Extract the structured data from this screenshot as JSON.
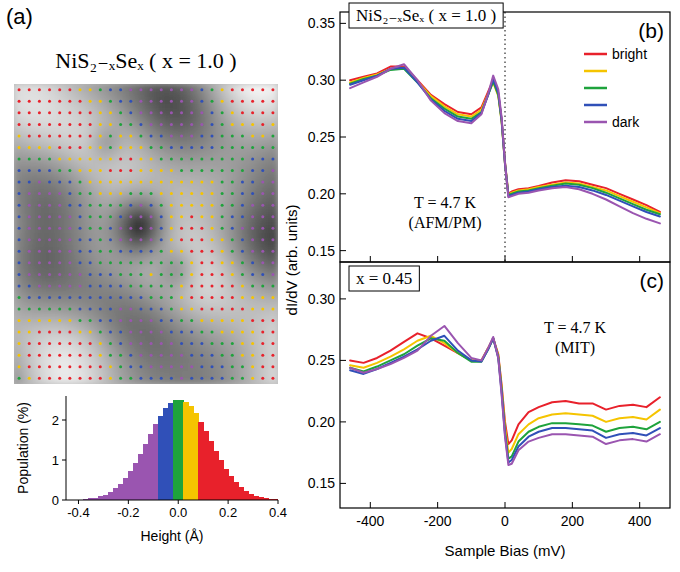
{
  "chart_data": [
    {
      "type": "image",
      "label": "(a)",
      "title": "NiS₂₋ₓSeₓ ( x = 1.0 )"
    },
    {
      "type": "histogram",
      "xlabel": "Height (Å)",
      "ylabel": "Population (%)",
      "bins": [
        -0.44,
        -0.42,
        -0.4,
        -0.38,
        -0.36,
        -0.34,
        -0.32,
        -0.3,
        -0.28,
        -0.26,
        -0.24,
        -0.22,
        -0.2,
        -0.18,
        -0.16,
        -0.14,
        -0.12,
        -0.1,
        -0.08,
        -0.06,
        -0.04,
        -0.02,
        0,
        0.02,
        0.04,
        0.06,
        0.08,
        0.1,
        0.12,
        0.14,
        0.16,
        0.18,
        0.2,
        0.22,
        0.24,
        0.26,
        0.28,
        0.3,
        0.32,
        0.34,
        0.36,
        0.38,
        0.4
      ],
      "values": [
        0.01,
        0.01,
        0.01,
        0.02,
        0.04,
        0.06,
        0.09,
        0.13,
        0.2,
        0.29,
        0.4,
        0.54,
        0.72,
        0.92,
        1.15,
        1.39,
        1.64,
        1.89,
        2.11,
        2.29,
        2.42,
        2.49,
        2.5,
        2.45,
        2.34,
        2.17,
        1.95,
        1.72,
        1.47,
        1.22,
        0.99,
        0.78,
        0.6,
        0.45,
        0.33,
        0.23,
        0.16,
        0.11,
        0.07,
        0.05,
        0.03,
        0.02
      ],
      "colors": [
        "#9a55b0",
        "#9a55b0",
        "#9a55b0",
        "#9a55b0",
        "#9a55b0",
        "#9a55b0",
        "#9a55b0",
        "#9a55b0",
        "#9a55b0",
        "#9a55b0",
        "#9a55b0",
        "#9a55b0",
        "#9a55b0",
        "#9a55b0",
        "#9a55b0",
        "#9a55b0",
        "#9a55b0",
        "#9a55b0",
        "#3050b8",
        "#3050b8",
        "#3050b8",
        "#1ea33c",
        "#1ea33c",
        "#f5c400",
        "#f5c400",
        "#f5c400",
        "#e8212b",
        "#e8212b",
        "#e8212b",
        "#e8212b",
        "#e8212b",
        "#e8212b",
        "#e8212b",
        "#e8212b",
        "#e8212b",
        "#e8212b",
        "#e8212b",
        "#e8212b",
        "#e8212b",
        "#e8212b",
        "#e8212b",
        "#e8212b"
      ],
      "xlim": [
        -0.45,
        0.4
      ],
      "ylim": [
        0,
        2.6
      ],
      "xticks": [
        -0.4,
        -0.2,
        {
          "value": 0,
          "label": "0.0"
        },
        0.2,
        0.4
      ],
      "yticks": [
        0,
        1,
        2
      ]
    },
    {
      "type": "line",
      "label": "(b)",
      "title": "NiS₂₋ₓSeₓ ( x = 1.0 )",
      "annotations": [
        "T = 4.7 K",
        "(AFM/PM)"
      ],
      "ylabel": "dI/dV (arb. units)",
      "legend": "upper right",
      "tick_labels": "y",
      "vline": 0,
      "x": [
        -460,
        -420,
        -380,
        -340,
        -300,
        -260,
        -220,
        -180,
        -140,
        -100,
        -70,
        -50,
        -35,
        -20,
        -10,
        0,
        10,
        20,
        40,
        70,
        100,
        140,
        180,
        220,
        260,
        300,
        340,
        380,
        420,
        460
      ],
      "series": [
        {
          "name": "bright",
          "color": "#e8212b",
          "values": [
            0.3,
            0.303,
            0.306,
            0.312,
            0.312,
            0.3,
            0.287,
            0.279,
            0.272,
            0.27,
            0.276,
            0.29,
            0.3,
            0.288,
            0.265,
            0.228,
            0.2,
            0.202,
            0.204,
            0.205,
            0.207,
            0.21,
            0.212,
            0.211,
            0.208,
            0.205,
            0.2,
            0.195,
            0.19,
            0.184
          ]
        },
        {
          "name": null,
          "color": "#f5c400",
          "values": [
            0.298,
            0.302,
            0.305,
            0.31,
            0.311,
            0.299,
            0.286,
            0.277,
            0.27,
            0.268,
            0.274,
            0.288,
            0.298,
            0.286,
            0.263,
            0.226,
            0.199,
            0.201,
            0.203,
            0.204,
            0.206,
            0.208,
            0.21,
            0.209,
            0.206,
            0.203,
            0.198,
            0.193,
            0.188,
            0.183
          ]
        },
        {
          "name": null,
          "color": "#1ea33c",
          "values": [
            0.297,
            0.301,
            0.304,
            0.309,
            0.31,
            0.298,
            0.284,
            0.275,
            0.268,
            0.266,
            0.272,
            0.287,
            0.299,
            0.287,
            0.264,
            0.227,
            0.199,
            0.2,
            0.202,
            0.203,
            0.205,
            0.207,
            0.209,
            0.208,
            0.205,
            0.201,
            0.196,
            0.191,
            0.186,
            0.182
          ]
        },
        {
          "name": null,
          "color": "#3050b8",
          "values": [
            0.296,
            0.3,
            0.304,
            0.31,
            0.311,
            0.298,
            0.283,
            0.273,
            0.266,
            0.264,
            0.271,
            0.287,
            0.301,
            0.289,
            0.265,
            0.226,
            0.198,
            0.199,
            0.201,
            0.202,
            0.204,
            0.206,
            0.207,
            0.206,
            0.203,
            0.199,
            0.194,
            0.189,
            0.184,
            0.18
          ]
        },
        {
          "name": "dark",
          "color": "#9a55b0",
          "values": [
            0.293,
            0.298,
            0.303,
            0.31,
            0.314,
            0.3,
            0.282,
            0.271,
            0.264,
            0.262,
            0.27,
            0.288,
            0.304,
            0.292,
            0.267,
            0.227,
            0.197,
            0.198,
            0.2,
            0.201,
            0.203,
            0.205,
            0.206,
            0.204,
            0.2,
            0.195,
            0.189,
            0.183,
            0.178,
            0.174
          ]
        }
      ],
      "xlim": [
        -490,
        490
      ],
      "ylim": [
        0.14,
        0.36
      ],
      "xticks": [
        -400,
        -200,
        0,
        200,
        400
      ],
      "yticks": [
        0.15,
        {
          "value": 0.2,
          "label": "0.20"
        },
        0.25,
        {
          "value": 0.3,
          "label": "0.30"
        },
        0.35
      ]
    },
    {
      "type": "line",
      "label": "(c)",
      "title": "x = 0.45",
      "annotations": [
        "T = 4.7 K",
        "(MIT)"
      ],
      "xlabel": "Sample Bias (mV)",
      "x": [
        -460,
        -420,
        -380,
        -340,
        -300,
        -260,
        -220,
        -180,
        -140,
        -100,
        -70,
        -50,
        -35,
        -20,
        -10,
        0,
        10,
        20,
        40,
        70,
        100,
        140,
        180,
        220,
        260,
        300,
        340,
        380,
        420,
        460
      ],
      "series": [
        {
          "color": "#e8212b",
          "values": [
            0.25,
            0.248,
            0.252,
            0.258,
            0.265,
            0.272,
            0.268,
            0.262,
            0.256,
            0.25,
            0.25,
            0.26,
            0.268,
            0.255,
            0.23,
            0.2,
            0.182,
            0.185,
            0.198,
            0.208,
            0.212,
            0.216,
            0.217,
            0.215,
            0.215,
            0.21,
            0.213,
            0.214,
            0.212,
            0.22
          ]
        },
        {
          "color": "#f5c400",
          "values": [
            0.246,
            0.244,
            0.248,
            0.253,
            0.259,
            0.266,
            0.27,
            0.264,
            0.256,
            0.25,
            0.25,
            0.26,
            0.268,
            0.254,
            0.228,
            0.196,
            0.175,
            0.178,
            0.19,
            0.198,
            0.203,
            0.206,
            0.207,
            0.206,
            0.205,
            0.2,
            0.203,
            0.204,
            0.202,
            0.21
          ]
        },
        {
          "color": "#1ea33c",
          "values": [
            0.244,
            0.241,
            0.245,
            0.25,
            0.255,
            0.262,
            0.268,
            0.266,
            0.256,
            0.249,
            0.249,
            0.259,
            0.268,
            0.253,
            0.226,
            0.192,
            0.17,
            0.172,
            0.184,
            0.192,
            0.196,
            0.199,
            0.199,
            0.198,
            0.197,
            0.192,
            0.195,
            0.196,
            0.194,
            0.2
          ]
        },
        {
          "color": "#3050b8",
          "values": [
            0.242,
            0.239,
            0.243,
            0.248,
            0.253,
            0.259,
            0.266,
            0.27,
            0.258,
            0.25,
            0.249,
            0.259,
            0.268,
            0.252,
            0.224,
            0.19,
            0.167,
            0.169,
            0.18,
            0.188,
            0.192,
            0.195,
            0.195,
            0.194,
            0.193,
            0.187,
            0.19,
            0.191,
            0.189,
            0.195
          ]
        },
        {
          "color": "#9a55b0",
          "values": [
            0.244,
            0.24,
            0.243,
            0.247,
            0.252,
            0.258,
            0.27,
            0.278,
            0.264,
            0.252,
            0.25,
            0.26,
            0.269,
            0.252,
            0.222,
            0.188,
            0.165,
            0.166,
            0.177,
            0.184,
            0.187,
            0.19,
            0.19,
            0.189,
            0.188,
            0.182,
            0.185,
            0.186,
            0.184,
            0.19
          ]
        }
      ],
      "xlim": [
        -490,
        490
      ],
      "ylim": [
        0.13,
        0.33
      ],
      "xticks": [
        -400,
        -200,
        0,
        200,
        400
      ],
      "yticks": [
        0.15,
        {
          "value": 0.2,
          "label": "0.20"
        },
        0.25,
        {
          "value": 0.3,
          "label": "0.30"
        }
      ]
    }
  ]
}
